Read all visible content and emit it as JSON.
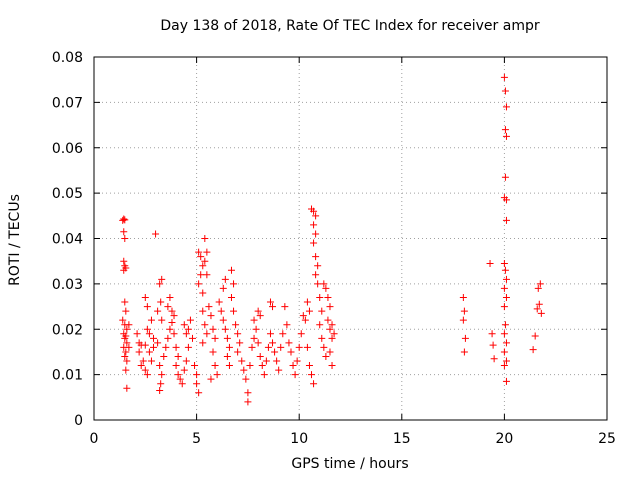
{
  "chart_data": {
    "type": "scatter",
    "title": "Day 138 of 2018, Rate Of TEC Index for receiver ampr",
    "xlabel": "GPS time / hours",
    "ylabel": "ROTI / TECUs",
    "xlim": [
      0,
      25
    ],
    "ylim": [
      0,
      0.08
    ],
    "x_ticks": [
      "0",
      "5",
      "10",
      "15",
      "20",
      "25"
    ],
    "y_ticks": [
      "0",
      "0.01",
      "0.02",
      "0.03",
      "0.04",
      "0.05",
      "0.06",
      "0.07",
      "0.08"
    ],
    "grid": true,
    "marker": "plus",
    "color": "#ff0000",
    "series": [
      {
        "points": [
          [
            1.4,
            0.044
          ],
          [
            1.45,
            0.0443
          ],
          [
            1.5,
            0.0441
          ],
          [
            1.45,
            0.0415
          ],
          [
            1.5,
            0.04
          ],
          [
            1.45,
            0.035
          ],
          [
            1.5,
            0.034
          ],
          [
            1.55,
            0.0335
          ],
          [
            1.45,
            0.033
          ],
          [
            1.5,
            0.026
          ],
          [
            1.55,
            0.024
          ],
          [
            1.4,
            0.022
          ],
          [
            1.5,
            0.021
          ],
          [
            1.6,
            0.02
          ],
          [
            1.45,
            0.019
          ],
          [
            1.55,
            0.0185
          ],
          [
            1.5,
            0.018
          ],
          [
            1.6,
            0.017
          ],
          [
            1.45,
            0.016
          ],
          [
            1.55,
            0.015
          ],
          [
            1.5,
            0.014
          ],
          [
            1.6,
            0.013
          ],
          [
            1.55,
            0.011
          ],
          [
            1.6,
            0.007
          ],
          [
            1.7,
            0.021
          ],
          [
            1.7,
            0.016
          ],
          [
            2.1,
            0.019
          ],
          [
            2.2,
            0.017
          ],
          [
            2.3,
            0.0165
          ],
          [
            2.2,
            0.015
          ],
          [
            2.4,
            0.013
          ],
          [
            2.3,
            0.012
          ],
          [
            2.5,
            0.011
          ],
          [
            2.6,
            0.01
          ],
          [
            2.5,
            0.0165
          ],
          [
            2.6,
            0.02
          ],
          [
            2.7,
            0.019
          ],
          [
            2.5,
            0.027
          ],
          [
            2.6,
            0.025
          ],
          [
            2.8,
            0.022
          ],
          [
            2.9,
            0.018
          ],
          [
            2.7,
            0.015
          ],
          [
            2.8,
            0.013
          ],
          [
            2.9,
            0.016
          ],
          [
            3.0,
            0.041
          ],
          [
            3.1,
            0.024
          ],
          [
            3.2,
            0.03
          ],
          [
            3.3,
            0.031
          ],
          [
            3.25,
            0.026
          ],
          [
            3.3,
            0.022
          ],
          [
            3.1,
            0.017
          ],
          [
            3.2,
            0.012
          ],
          [
            3.3,
            0.01
          ],
          [
            3.25,
            0.008
          ],
          [
            3.2,
            0.0065
          ],
          [
            3.4,
            0.014
          ],
          [
            3.5,
            0.016
          ],
          [
            3.6,
            0.018
          ],
          [
            3.7,
            0.02
          ],
          [
            3.8,
            0.0215
          ],
          [
            3.9,
            0.019
          ],
          [
            3.7,
            0.027
          ],
          [
            3.6,
            0.025
          ],
          [
            3.8,
            0.024
          ],
          [
            3.9,
            0.023
          ],
          [
            4.0,
            0.016
          ],
          [
            4.1,
            0.014
          ],
          [
            4.0,
            0.012
          ],
          [
            4.1,
            0.01
          ],
          [
            4.2,
            0.009
          ],
          [
            4.3,
            0.008
          ],
          [
            4.4,
            0.011
          ],
          [
            4.5,
            0.013
          ],
          [
            4.6,
            0.016
          ],
          [
            4.5,
            0.019
          ],
          [
            4.4,
            0.021
          ],
          [
            4.7,
            0.022
          ],
          [
            4.6,
            0.02
          ],
          [
            4.8,
            0.018
          ],
          [
            4.9,
            0.012
          ],
          [
            5.0,
            0.01
          ],
          [
            5.0,
            0.008
          ],
          [
            5.1,
            0.006
          ],
          [
            5.1,
            0.037
          ],
          [
            5.2,
            0.036
          ],
          [
            5.3,
            0.034
          ],
          [
            5.2,
            0.032
          ],
          [
            5.1,
            0.03
          ],
          [
            5.3,
            0.028
          ],
          [
            5.4,
            0.04
          ],
          [
            5.5,
            0.037
          ],
          [
            5.4,
            0.035
          ],
          [
            5.5,
            0.032
          ],
          [
            5.3,
            0.024
          ],
          [
            5.4,
            0.021
          ],
          [
            5.5,
            0.019
          ],
          [
            5.3,
            0.017
          ],
          [
            5.6,
            0.025
          ],
          [
            5.7,
            0.023
          ],
          [
            5.8,
            0.02
          ],
          [
            5.9,
            0.018
          ],
          [
            5.8,
            0.015
          ],
          [
            5.9,
            0.012
          ],
          [
            6.0,
            0.01
          ],
          [
            5.7,
            0.009
          ],
          [
            6.1,
            0.026
          ],
          [
            6.2,
            0.024
          ],
          [
            6.3,
            0.029
          ],
          [
            6.4,
            0.031
          ],
          [
            6.3,
            0.022
          ],
          [
            6.4,
            0.02
          ],
          [
            6.5,
            0.018
          ],
          [
            6.6,
            0.016
          ],
          [
            6.5,
            0.014
          ],
          [
            6.6,
            0.012
          ],
          [
            6.7,
            0.033
          ],
          [
            6.8,
            0.03
          ],
          [
            6.7,
            0.027
          ],
          [
            6.8,
            0.024
          ],
          [
            6.9,
            0.021
          ],
          [
            7.0,
            0.019
          ],
          [
            7.1,
            0.017
          ],
          [
            7.0,
            0.015
          ],
          [
            7.2,
            0.013
          ],
          [
            7.3,
            0.011
          ],
          [
            7.4,
            0.009
          ],
          [
            7.5,
            0.006
          ],
          [
            7.5,
            0.004
          ],
          [
            7.6,
            0.012
          ],
          [
            7.7,
            0.016
          ],
          [
            7.8,
            0.018
          ],
          [
            7.9,
            0.02
          ],
          [
            7.8,
            0.022
          ],
          [
            8.0,
            0.024
          ],
          [
            8.1,
            0.023
          ],
          [
            8.0,
            0.017
          ],
          [
            8.1,
            0.014
          ],
          [
            8.2,
            0.012
          ],
          [
            8.3,
            0.01
          ],
          [
            8.4,
            0.013
          ],
          [
            8.5,
            0.016
          ],
          [
            8.6,
            0.026
          ],
          [
            8.7,
            0.025
          ],
          [
            8.6,
            0.019
          ],
          [
            8.7,
            0.017
          ],
          [
            8.8,
            0.015
          ],
          [
            8.9,
            0.013
          ],
          [
            9.0,
            0.011
          ],
          [
            9.1,
            0.016
          ],
          [
            9.2,
            0.019
          ],
          [
            9.3,
            0.025
          ],
          [
            9.4,
            0.021
          ],
          [
            9.5,
            0.017
          ],
          [
            9.6,
            0.015
          ],
          [
            9.7,
            0.012
          ],
          [
            9.8,
            0.01
          ],
          [
            9.9,
            0.013
          ],
          [
            10.0,
            0.016
          ],
          [
            10.1,
            0.019
          ],
          [
            10.2,
            0.023
          ],
          [
            10.3,
            0.022
          ],
          [
            10.4,
            0.026
          ],
          [
            10.5,
            0.024
          ],
          [
            10.4,
            0.016
          ],
          [
            10.5,
            0.012
          ],
          [
            10.6,
            0.01
          ],
          [
            10.7,
            0.008
          ],
          [
            10.6,
            0.0465
          ],
          [
            10.7,
            0.046
          ],
          [
            10.8,
            0.045
          ],
          [
            10.7,
            0.043
          ],
          [
            10.8,
            0.041
          ],
          [
            10.7,
            0.039
          ],
          [
            10.8,
            0.036
          ],
          [
            10.9,
            0.034
          ],
          [
            10.8,
            0.032
          ],
          [
            10.9,
            0.03
          ],
          [
            11.0,
            0.027
          ],
          [
            11.1,
            0.024
          ],
          [
            11.0,
            0.021
          ],
          [
            11.1,
            0.018
          ],
          [
            11.2,
            0.016
          ],
          [
            11.3,
            0.014
          ],
          [
            11.2,
            0.03
          ],
          [
            11.3,
            0.029
          ],
          [
            11.4,
            0.027
          ],
          [
            11.5,
            0.025
          ],
          [
            11.4,
            0.022
          ],
          [
            11.5,
            0.02
          ],
          [
            11.6,
            0.018
          ],
          [
            11.5,
            0.015
          ],
          [
            11.6,
            0.012
          ],
          [
            11.6,
            0.021
          ],
          [
            11.7,
            0.019
          ],
          [
            18.0,
            0.027
          ],
          [
            18.05,
            0.024
          ],
          [
            18.0,
            0.022
          ],
          [
            18.1,
            0.018
          ],
          [
            18.05,
            0.015
          ],
          [
            19.3,
            0.0345
          ],
          [
            19.4,
            0.019
          ],
          [
            19.45,
            0.0165
          ],
          [
            19.5,
            0.0135
          ],
          [
            20.0,
            0.0755
          ],
          [
            20.05,
            0.0725
          ],
          [
            20.1,
            0.069
          ],
          [
            20.05,
            0.064
          ],
          [
            20.1,
            0.0625
          ],
          [
            20.05,
            0.0535
          ],
          [
            20.0,
            0.049
          ],
          [
            20.1,
            0.0485
          ],
          [
            20.1,
            0.044
          ],
          [
            20.0,
            0.0345
          ],
          [
            20.05,
            0.033
          ],
          [
            20.1,
            0.031
          ],
          [
            20.0,
            0.029
          ],
          [
            20.1,
            0.027
          ],
          [
            20.0,
            0.025
          ],
          [
            20.05,
            0.021
          ],
          [
            20.0,
            0.019
          ],
          [
            20.1,
            0.017
          ],
          [
            20.0,
            0.015
          ],
          [
            20.1,
            0.013
          ],
          [
            20.0,
            0.012
          ],
          [
            20.1,
            0.0085
          ],
          [
            21.4,
            0.0155
          ],
          [
            21.5,
            0.0185
          ],
          [
            21.6,
            0.0245
          ],
          [
            21.7,
            0.0255
          ],
          [
            21.75,
            0.03
          ],
          [
            21.8,
            0.0235
          ],
          [
            21.65,
            0.029
          ]
        ]
      }
    ]
  }
}
